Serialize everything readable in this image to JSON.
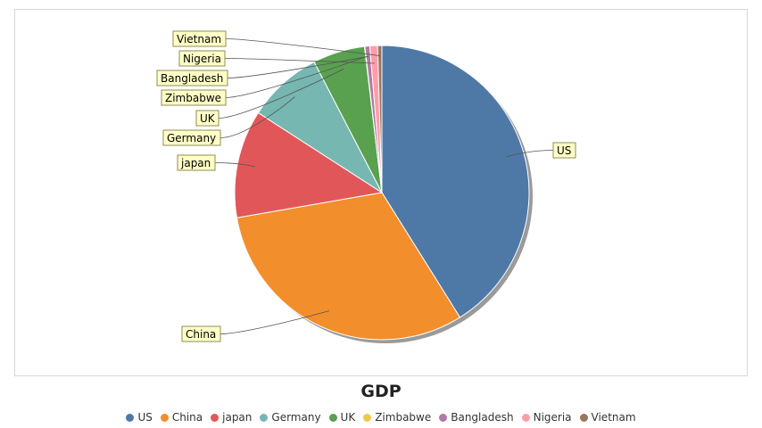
{
  "chart_data": {
    "type": "pie",
    "title": "GDP",
    "legend_position": "bottom",
    "categories": [
      "US",
      "China",
      "japan",
      "Germany",
      "UK",
      "Zimbabwe",
      "Bangladesh",
      "Nigeria",
      "Vietnam"
    ],
    "values": [
      19.4,
      14.7,
      5.6,
      3.9,
      2.7,
      0.02,
      0.25,
      0.4,
      0.22
    ],
    "colors": [
      "#4e79a7",
      "#f28e2b",
      "#e15759",
      "#76b7b2",
      "#59a14f",
      "#edc948",
      "#b07aa1",
      "#ff9da7",
      "#9c755f"
    ]
  }
}
